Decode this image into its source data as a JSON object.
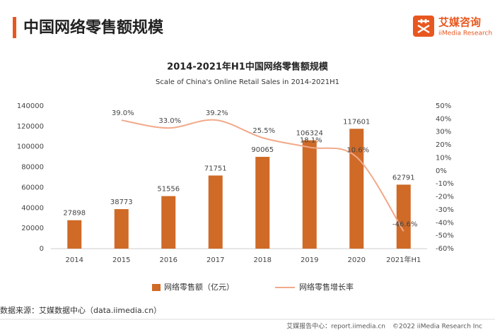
{
  "header": {
    "title": "中国网络零售额规模",
    "logo_cn": "艾媒咨询",
    "logo_en": "iiMedia Research"
  },
  "source": "数据来源：艾媒数据中心（data.iimedia.cn）",
  "footer": {
    "site": "艾媒报告中心：report.iimedia.cn",
    "copyright": "©2022  iiMedia Research  Inc"
  },
  "chart_data": {
    "type": "bar-line",
    "title": "2014-2021年H1中国网络零售额规模",
    "subtitle": "Scale of China's Online Retail Sales in 2014-2021H1",
    "categories": [
      "2014",
      "2015",
      "2016",
      "2017",
      "2018",
      "2019",
      "2020",
      "2021年H1"
    ],
    "series": [
      {
        "name": "网络零售额（亿元）",
        "type": "bar",
        "color": "#cf6a27",
        "values": [
          27898,
          38773,
          51556,
          71751,
          90065,
          106324,
          117601,
          62791
        ]
      },
      {
        "name": "网络零售增长率",
        "type": "line",
        "axis": "y2",
        "color": "#f2a98a",
        "values": [
          null,
          39.0,
          33.0,
          39.2,
          25.5,
          18.1,
          10.6,
          -46.6
        ],
        "value_labels": [
          null,
          "39.0%",
          "33.0%",
          "39.2%",
          "25.5%",
          "18.1%",
          "10.6%",
          "-46.6%"
        ]
      }
    ],
    "ylim": [
      0,
      140000
    ],
    "yticks": [
      0,
      20000,
      40000,
      60000,
      80000,
      100000,
      120000,
      140000
    ],
    "y2lim": [
      -60,
      50
    ],
    "y2ticks": [
      {
        "value": -60,
        "label": "-60%"
      },
      {
        "value": -50,
        "label": "-50%"
      },
      {
        "value": -40,
        "label": "-40%"
      },
      {
        "value": -30,
        "label": "-30%"
      },
      {
        "value": -20,
        "label": "-20%"
      },
      {
        "value": -10,
        "label": "-10%"
      },
      {
        "value": 0,
        "label": "0%"
      },
      {
        "value": 10,
        "label": "10%"
      },
      {
        "value": 20,
        "label": "20%"
      },
      {
        "value": 30,
        "label": "30%"
      },
      {
        "value": 40,
        "label": "40%"
      },
      {
        "value": 50,
        "label": "50%"
      }
    ],
    "grid": false,
    "legend": "bottom"
  }
}
